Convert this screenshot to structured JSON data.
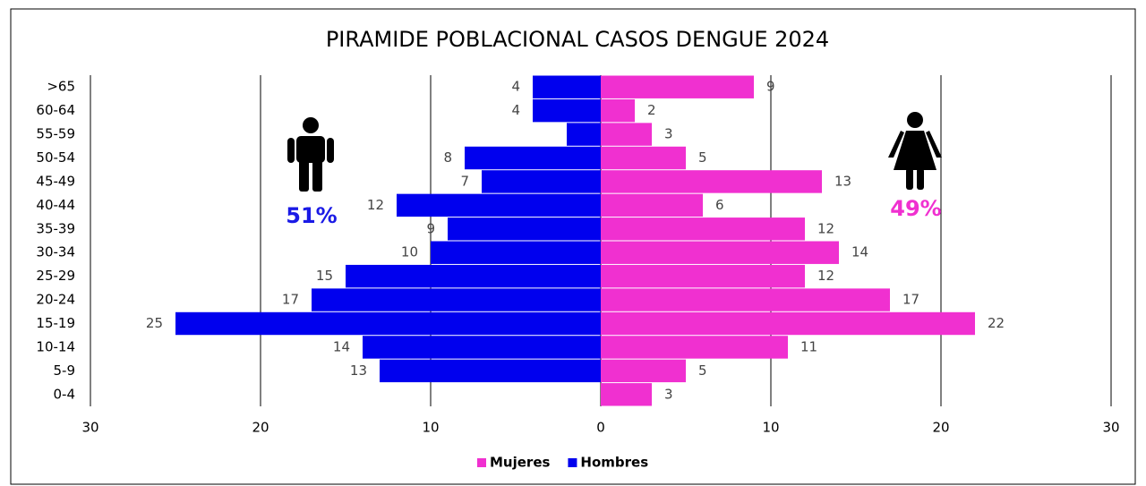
{
  "chart_data": {
    "type": "pyramid",
    "title": "PIRAMIDE POBLACIONAL  CASOS DENGUE 2024",
    "categories": [
      ">65",
      "60-64",
      "55-59",
      "50-54",
      "45-49",
      "40-44",
      "35-39",
      "30-34",
      "25-29",
      "20-24",
      "15-19",
      "10-14",
      "5-9",
      "0-4"
    ],
    "series": [
      {
        "name": "Mujeres",
        "color": "#f030d0",
        "side": "right",
        "values": [
          9,
          2,
          3,
          5,
          13,
          6,
          12,
          14,
          12,
          17,
          22,
          11,
          5,
          3
        ]
      },
      {
        "name": "Hombres",
        "color": "#0000ee",
        "side": "left",
        "values": [
          4,
          4,
          2,
          8,
          7,
          12,
          9,
          10,
          15,
          17,
          25,
          14,
          13,
          null
        ],
        "value_labels": [
          "4",
          "4",
          null,
          "8",
          "7",
          "12",
          "9",
          "10",
          "15",
          "17",
          "25",
          "14",
          "13",
          null
        ]
      }
    ],
    "xlim": [
      -30,
      30
    ],
    "xticks": [
      {
        "value": -30,
        "label": "30"
      },
      {
        "value": -20,
        "label": "20"
      },
      {
        "value": -10,
        "label": "10"
      },
      0,
      10,
      20,
      30
    ],
    "grid": true,
    "legend": "bottom",
    "annotations": [
      {
        "text": "51%",
        "color": "#1a1ae6"
      },
      {
        "text": "49%",
        "color": "#f030d0"
      }
    ]
  }
}
